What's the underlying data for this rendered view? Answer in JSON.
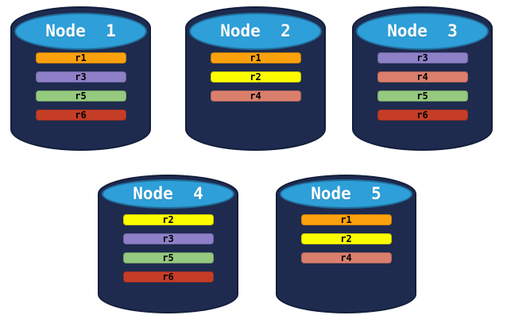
{
  "colors": {
    "background": "#FFFFFF",
    "cylinder_body": "#1E2B4F",
    "cylinder_outline": "#121E3A",
    "cylinder_top": "#2E9FD8",
    "title_text": "#FFFFFF",
    "bar_text": "#000000"
  },
  "nodes": [
    {
      "title": "Node  1",
      "replicas": [
        {
          "label": "r1",
          "color": "#FBA10D"
        },
        {
          "label": "r3",
          "color": "#8E80C8"
        },
        {
          "label": "r5",
          "color": "#95C97F"
        },
        {
          "label": "r6",
          "color": "#C53D27"
        }
      ]
    },
    {
      "title": "Node  2",
      "replicas": [
        {
          "label": "r1",
          "color": "#FBA10D"
        },
        {
          "label": "r2",
          "color": "#FCFC00"
        },
        {
          "label": "r4",
          "color": "#DB7F6D"
        }
      ]
    },
    {
      "title": "Node  3",
      "replicas": [
        {
          "label": "r3",
          "color": "#8E80C8"
        },
        {
          "label": "r4",
          "color": "#DB7F6D"
        },
        {
          "label": "r5",
          "color": "#95C97F"
        },
        {
          "label": "r6",
          "color": "#C53D27"
        }
      ]
    },
    {
      "title": "Node  4",
      "replicas": [
        {
          "label": "r2",
          "color": "#FCFC00"
        },
        {
          "label": "r3",
          "color": "#8E80C8"
        },
        {
          "label": "r5",
          "color": "#95C97F"
        },
        {
          "label": "r6",
          "color": "#C53D27"
        }
      ]
    },
    {
      "title": "Node  5",
      "replicas": [
        {
          "label": "r1",
          "color": "#FBA10D"
        },
        {
          "label": "r2",
          "color": "#FCFC00"
        },
        {
          "label": "r4",
          "color": "#DB7F6D"
        }
      ]
    }
  ]
}
